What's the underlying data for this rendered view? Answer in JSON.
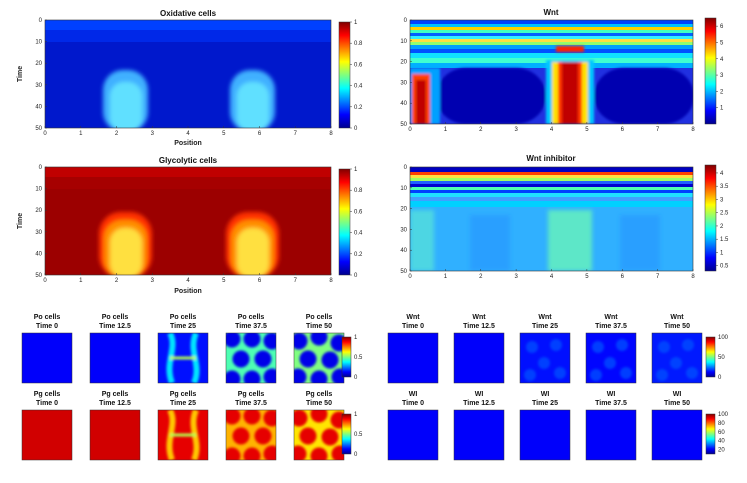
{
  "chart_data": [
    {
      "type": "heatmap",
      "id": "oxidative",
      "title": "Oxidative cells",
      "xlabel": "Position",
      "ylabel": "Time",
      "xlim": [
        0,
        8
      ],
      "ylim": [
        0,
        50
      ],
      "xticks": [
        "0",
        "1",
        "2",
        "3",
        "4",
        "5",
        "6",
        "7",
        "8"
      ],
      "yticks": [
        "0",
        "10",
        "20",
        "30",
        "40",
        "50"
      ],
      "colorbar": {
        "min": 0,
        "max": 1,
        "ticks": [
          "0",
          "0.2",
          "0.4",
          "0.6",
          "0.8",
          "1"
        ]
      },
      "description_values": {
        "background": 0.05,
        "blob_peak": 0.5,
        "blob_centers_position": [
          2.4,
          6.4
        ],
        "blob_start_time": 20
      }
    },
    {
      "type": "heatmap",
      "id": "wnt",
      "title": "Wnt",
      "xlabel": "",
      "ylabel": "",
      "xlim": [
        0,
        8
      ],
      "ylim": [
        0,
        50
      ],
      "xticks": [
        "0",
        "1",
        "2",
        "3",
        "4",
        "5",
        "6",
        "7",
        "8"
      ],
      "yticks": [
        "0",
        "10",
        "20",
        "30",
        "40",
        "50"
      ],
      "colorbar": {
        "min": 0,
        "max": 6.5,
        "ticks": [
          "1",
          "2",
          "3",
          "4",
          "5",
          "6"
        ]
      },
      "description_values": {
        "high_columns_position": [
          0.2,
          4.3
        ]
      }
    },
    {
      "type": "heatmap",
      "id": "glycolytic",
      "title": "Glycolytic cells",
      "xlabel": "Position",
      "ylabel": "Time",
      "xlim": [
        0,
        8
      ],
      "ylim": [
        0,
        50
      ],
      "xticks": [
        "0",
        "1",
        "2",
        "3",
        "4",
        "5",
        "6",
        "7",
        "8"
      ],
      "yticks": [
        "0",
        "10",
        "20",
        "30",
        "40",
        "50"
      ],
      "colorbar": {
        "min": 0,
        "max": 1,
        "ticks": [
          "0",
          "0.2",
          "0.4",
          "0.6",
          "0.8",
          "1"
        ]
      },
      "description_values": {
        "background": 0.95,
        "blob_low": 0.75,
        "blob_centers_position": [
          2.4,
          6.4
        ]
      }
    },
    {
      "type": "heatmap",
      "id": "wnt_inhibitor",
      "title": "Wnt inhibitor",
      "xlabel": "",
      "ylabel": "",
      "xlim": [
        0,
        8
      ],
      "ylim": [
        0,
        50
      ],
      "xticks": [
        "0",
        "1",
        "2",
        "3",
        "4",
        "5",
        "6",
        "7",
        "8"
      ],
      "yticks": [
        "0",
        "10",
        "20",
        "30",
        "40",
        "50"
      ],
      "colorbar": {
        "min": 0.3,
        "max": 4.3,
        "ticks": [
          "0.5",
          "1",
          "1.5",
          "2",
          "2.5",
          "3",
          "3.5",
          "4"
        ]
      }
    }
  ],
  "snapshots": {
    "po": {
      "labels": [
        "Po cells",
        "Po cells",
        "Po cells",
        "Po cells",
        "Po cells"
      ],
      "times": [
        "Time 0",
        "Time 12.5",
        "Time 25",
        "Time 37.5",
        "Time 50"
      ],
      "colorbar_ticks": [
        "0",
        "0.5",
        "1"
      ]
    },
    "pg": {
      "labels": [
        "Pg cells",
        "Pg cells",
        "Pg cells",
        "Pg cells",
        "Pg cells"
      ],
      "times": [
        "Time 0",
        "Time 12.5",
        "Time 25",
        "Time 37.5",
        "Time 50"
      ],
      "colorbar_ticks": [
        "0",
        "0.5",
        "1"
      ]
    },
    "wnt": {
      "labels": [
        "Wnt",
        "Wnt",
        "Wnt",
        "Wnt",
        "Wnt"
      ],
      "times": [
        "Time 0",
        "Time 12.5",
        "Time 25",
        "Time 37.5",
        "Time 50"
      ],
      "colorbar_ticks": [
        "0",
        "50",
        "100"
      ]
    },
    "wi": {
      "labels": [
        "WI",
        "WI",
        "WI",
        "WI",
        "WI"
      ],
      "times": [
        "Time 0",
        "Time 12.5",
        "Time 25",
        "Time 37.5",
        "Time 50"
      ],
      "colorbar_ticks": [
        "20",
        "40",
        "60",
        "80",
        "100"
      ]
    }
  }
}
